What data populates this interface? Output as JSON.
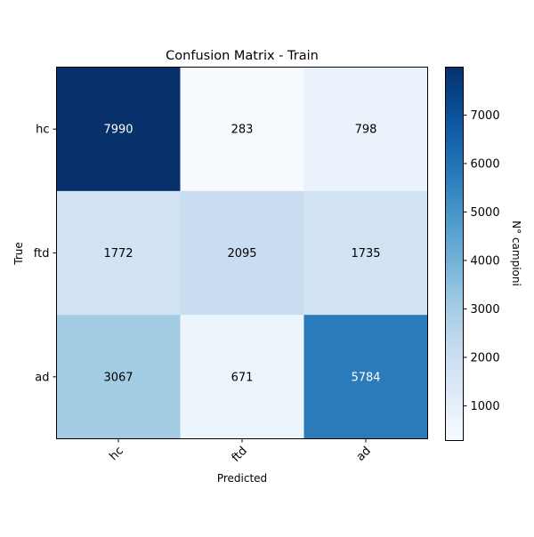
{
  "chart_data": {
    "type": "heatmap",
    "title": "Confusion Matrix - Train",
    "xlabel": "Predicted",
    "ylabel": "True",
    "x_categories": [
      "hc",
      "ftd",
      "ad"
    ],
    "y_categories": [
      "hc",
      "ftd",
      "ad"
    ],
    "values": [
      [
        7990,
        283,
        798
      ],
      [
        1772,
        2095,
        1735
      ],
      [
        3067,
        671,
        5784
      ]
    ],
    "colormap": "Blues",
    "colorbar": {
      "label": "N° campioni",
      "ticks": [
        1000,
        2000,
        3000,
        4000,
        5000,
        6000,
        7000
      ],
      "range": [
        283,
        7990
      ]
    },
    "grid": false
  }
}
